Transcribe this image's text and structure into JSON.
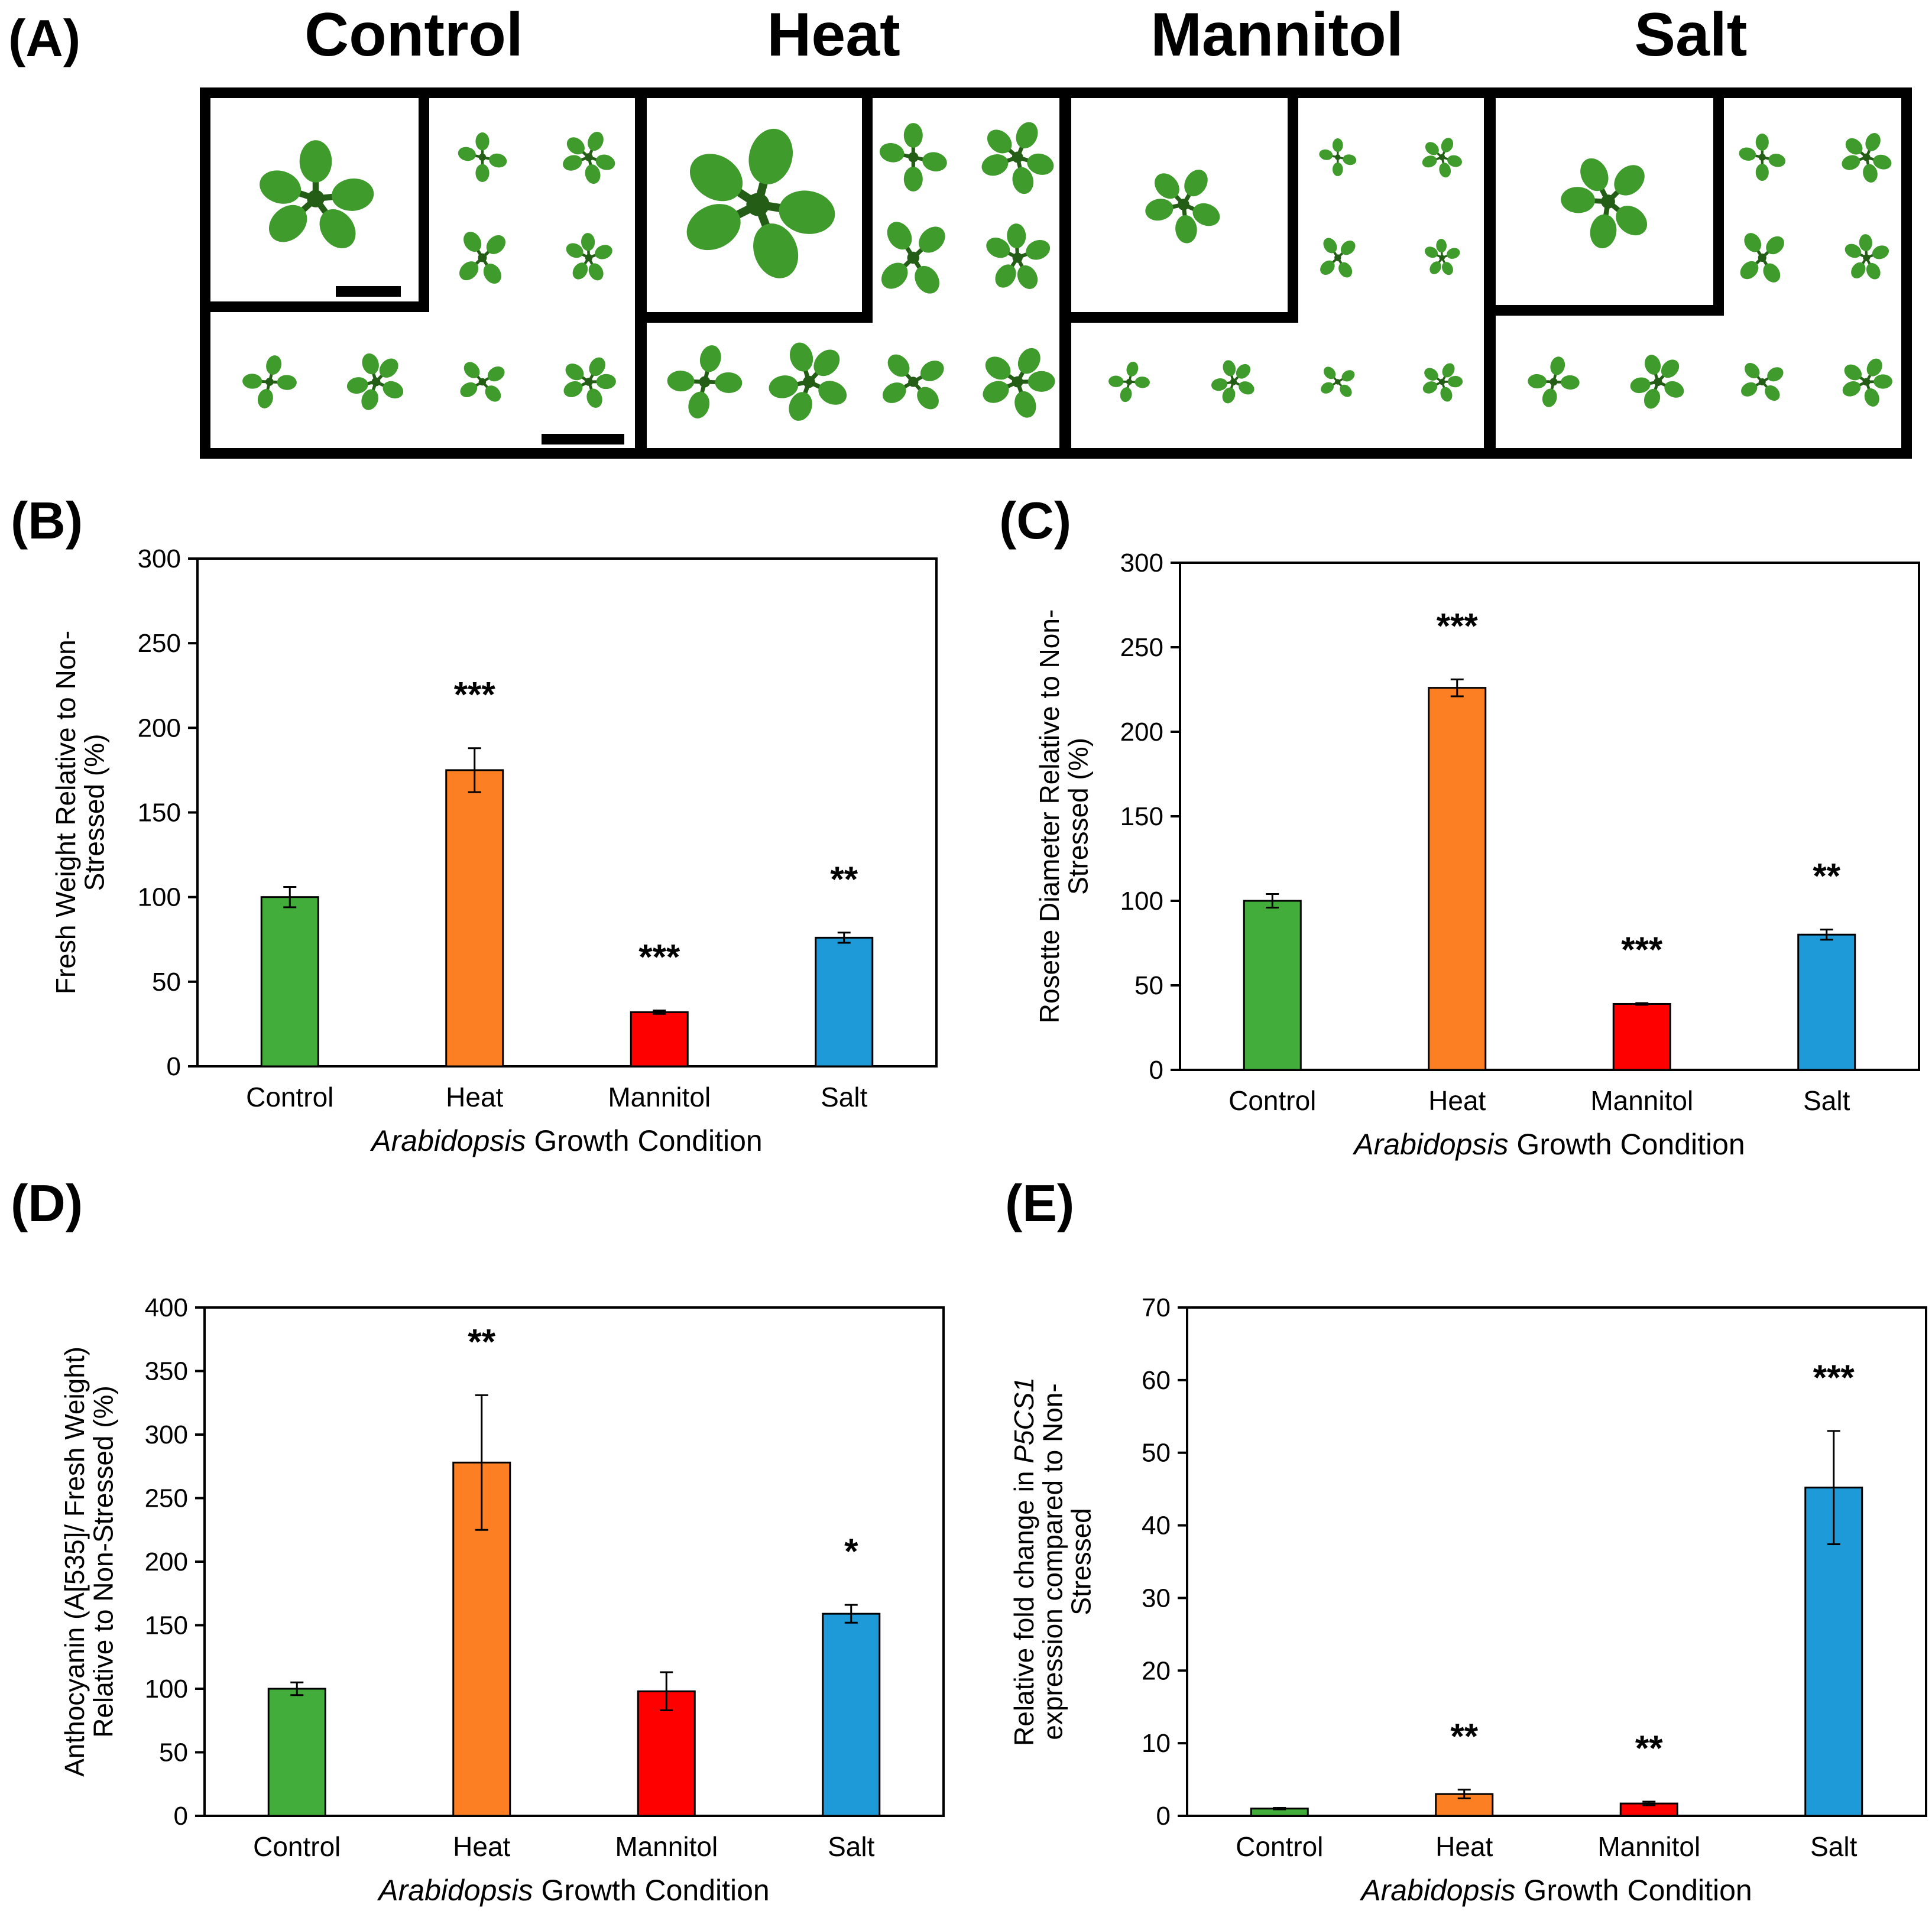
{
  "panel_a": {
    "label": "(A)",
    "conditions": [
      "Control",
      "Heat",
      "Mannitol",
      "Salt"
    ]
  },
  "colors": {
    "control": "#43ad3b",
    "heat": "#fd7f23",
    "mannitol": "#fe0000",
    "salt": "#1e9ad9",
    "leaf": "#3f9b2c",
    "leaf_dark": "#245e16"
  },
  "chart_data": [
    {
      "id": "B",
      "label": "(B)",
      "type": "bar",
      "categories": [
        "Control",
        "Heat",
        "Mannitol",
        "Salt"
      ],
      "values": [
        100,
        175,
        32,
        76
      ],
      "errors": [
        6,
        13,
        1,
        3
      ],
      "significance": [
        "",
        "***",
        "***",
        "**"
      ],
      "ylabel": "Fresh Weight Relative to Non-Stressed (%)",
      "ylabel_lines": [
        "Fresh Weight Relative to Non-",
        "Stressed (%)"
      ],
      "xlabel_italic": "Arabidopsis",
      "xlabel_rest": " Growth  Condition",
      "ylim": [
        0,
        300
      ],
      "yticks": [
        0,
        50,
        100,
        150,
        200,
        250,
        300
      ]
    },
    {
      "id": "C",
      "label": "(C)",
      "type": "bar",
      "categories": [
        "Control",
        "Heat",
        "Mannitol",
        "Salt"
      ],
      "values": [
        100,
        226,
        39,
        80
      ],
      "errors": [
        4,
        5,
        0.5,
        3
      ],
      "significance": [
        "",
        "***",
        "***",
        "**"
      ],
      "ylabel": "Rosette Diameter Relative to Non-Stressed (%)",
      "ylabel_lines": [
        "Rosette  Diameter Relative to Non-",
        "Stressed (%)"
      ],
      "xlabel_italic": "Arabidopsis",
      "xlabel_rest": " Growth  Condition",
      "ylim": [
        0,
        300
      ],
      "yticks": [
        0,
        50,
        100,
        150,
        200,
        250,
        300
      ]
    },
    {
      "id": "D",
      "label": "(D)",
      "type": "bar",
      "categories": [
        "Control",
        "Heat",
        "Mannitol",
        "Salt"
      ],
      "values": [
        100,
        278,
        98,
        159
      ],
      "errors": [
        5,
        53,
        15,
        7
      ],
      "significance": [
        "",
        "**",
        "",
        "*"
      ],
      "ylabel": "Anthocyanin (A[535]/ Fresh Weight) Relative to Non-Stressed (%)",
      "ylabel_lines": [
        "Anthocyanin (A[535]/ Fresh Weight)",
        "Relative  to Non-Stressed  (%)"
      ],
      "xlabel_italic": "Arabidopsis",
      "xlabel_rest": " Growth  Condition",
      "ylim": [
        0,
        400
      ],
      "yticks": [
        0,
        50,
        100,
        150,
        200,
        250,
        300,
        350,
        400
      ]
    },
    {
      "id": "E",
      "label": "(E)",
      "type": "bar",
      "categories": [
        "Control",
        "Heat",
        "Mannitol",
        "Salt"
      ],
      "values": [
        1,
        3,
        1.7,
        45.2
      ],
      "errors": [
        0.1,
        0.6,
        0.25,
        7.8
      ],
      "significance": [
        "",
        "**",
        "**",
        "***"
      ],
      "ylabel": "Relative fold change in P5CS1 expression compared to Non-Stressed",
      "ylabel_line1_pre": "Relative  fold change in ",
      "ylabel_line1_italic": "P5CS1",
      "ylabel_lines": [
        "expression compared to Non-",
        "Stressed"
      ],
      "xlabel_italic": "Arabidopsis",
      "xlabel_rest": " Growth  Condition",
      "ylim": [
        0,
        70
      ],
      "yticks": [
        0,
        10,
        20,
        30,
        40,
        50,
        60,
        70
      ]
    }
  ]
}
